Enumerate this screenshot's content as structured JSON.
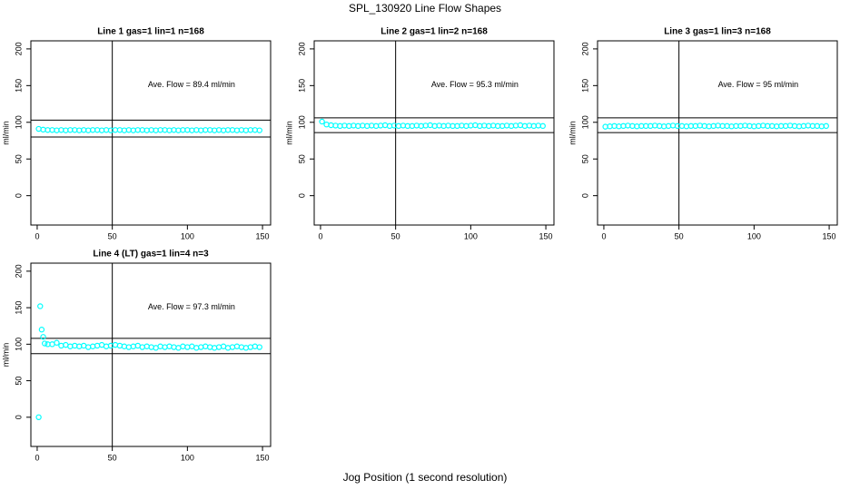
{
  "title": "SPL_130920  Line Flow Shapes",
  "xlabel": "Jog Position (1 second resolution)",
  "chart_data": [
    {
      "type": "scatter",
      "title": "Line 1 gas=1 lin=1 n=168",
      "ylabel": "ml/min",
      "annotation": "Ave. Flow =  89.4  ml/min",
      "color": "#00ffff",
      "xlim": [
        -4.2,
        155.4
      ],
      "ylim": [
        -40,
        211
      ],
      "xticks": [
        0,
        50,
        100,
        150
      ],
      "yticks": [
        0,
        50,
        100,
        150,
        200
      ],
      "hlines": [
        103,
        80
      ],
      "vlines": [
        50
      ],
      "x": [
        1,
        4,
        7,
        10,
        13,
        16,
        19,
        22,
        25,
        28,
        31,
        34,
        37,
        40,
        43,
        46,
        49,
        52,
        55,
        58,
        61,
        64,
        67,
        70,
        73,
        76,
        79,
        82,
        85,
        88,
        91,
        94,
        97,
        100,
        103,
        106,
        109,
        112,
        115,
        118,
        121,
        124,
        127,
        130,
        133,
        136,
        139,
        142,
        145,
        148
      ],
      "values": [
        91,
        90,
        89.5,
        89.5,
        89,
        89.5,
        89,
        89.5,
        89.5,
        89,
        89.5,
        89,
        89.5,
        89.5,
        89,
        89.5,
        89,
        89.5,
        89.5,
        89,
        89.5,
        89,
        89.5,
        89.5,
        89,
        89.5,
        89,
        89.5,
        89.5,
        89,
        89.5,
        89,
        89.5,
        89.5,
        89,
        89.5,
        89,
        89.5,
        89.5,
        89,
        89.5,
        89,
        89.5,
        89.5,
        89,
        89.5,
        89,
        89.5,
        89.5,
        89
      ]
    },
    {
      "type": "scatter",
      "title": "Line 2 gas=1 lin=2 n=168",
      "ylabel": "ml/min",
      "annotation": "Ave. Flow =  95.3  ml/min",
      "color": "#00ffff",
      "xlim": [
        -4.2,
        155.4
      ],
      "ylim": [
        -40,
        211
      ],
      "xticks": [
        0,
        50,
        100,
        150
      ],
      "yticks": [
        0,
        50,
        100,
        150,
        200
      ],
      "hlines": [
        106,
        86
      ],
      "vlines": [
        50
      ],
      "x": [
        1,
        4,
        7,
        10,
        13,
        16,
        19,
        22,
        25,
        28,
        31,
        34,
        37,
        40,
        43,
        46,
        49,
        52,
        55,
        58,
        61,
        64,
        67,
        70,
        73,
        76,
        79,
        82,
        85,
        88,
        91,
        94,
        97,
        100,
        103,
        106,
        109,
        112,
        115,
        118,
        121,
        124,
        127,
        130,
        133,
        136,
        139,
        142,
        145,
        148
      ],
      "values": [
        101,
        97,
        96,
        95.5,
        95,
        95.5,
        95,
        95.5,
        95,
        95.5,
        95,
        95.5,
        95,
        95.5,
        96,
        95,
        95.5,
        95,
        95.5,
        95,
        95,
        95.5,
        95,
        95.5,
        96,
        95,
        95.5,
        95,
        95.5,
        95,
        95,
        95.5,
        95,
        95.5,
        96,
        95,
        95.5,
        95,
        95.5,
        95,
        95,
        95.5,
        95,
        95.5,
        96,
        95,
        95.5,
        95,
        95.5,
        95
      ]
    },
    {
      "type": "scatter",
      "title": "Line 3 gas=1 lin=3 n=168",
      "ylabel": "ml/min",
      "annotation": "Ave. Flow =  95  ml/min",
      "color": "#00ffff",
      "xlim": [
        -4.2,
        155.4
      ],
      "ylim": [
        -40,
        211
      ],
      "xticks": [
        0,
        50,
        100,
        150
      ],
      "yticks": [
        0,
        50,
        100,
        150,
        200
      ],
      "hlines": [
        106,
        86
      ],
      "vlines": [
        50
      ],
      "x": [
        1,
        4,
        7,
        10,
        13,
        16,
        19,
        22,
        25,
        28,
        31,
        34,
        37,
        40,
        43,
        46,
        49,
        52,
        55,
        58,
        61,
        64,
        67,
        70,
        73,
        76,
        79,
        82,
        85,
        88,
        91,
        94,
        97,
        100,
        103,
        106,
        109,
        112,
        115,
        118,
        121,
        124,
        127,
        130,
        133,
        136,
        139,
        142,
        145,
        148
      ],
      "values": [
        94,
        94.5,
        95,
        94.5,
        95,
        95.5,
        95,
        94.5,
        95,
        95,
        95,
        95.5,
        95,
        94.5,
        95,
        95.5,
        95,
        95,
        94.5,
        95,
        95,
        95.5,
        95,
        94.5,
        95,
        95.5,
        95,
        95,
        94.5,
        95,
        95,
        95.5,
        95,
        94.5,
        95,
        95.5,
        95,
        95,
        94.5,
        95,
        95,
        95.5,
        95,
        94.5,
        95,
        95.5,
        95,
        95,
        94.5,
        95
      ]
    },
    {
      "type": "scatter",
      "title": "Line 4 (LT) gas=1 lin=4 n=3",
      "ylabel": "ml/min",
      "annotation": "Ave. Flow =  97.3  ml/min",
      "color": "#00ffff",
      "xlim": [
        -4.2,
        155.4
      ],
      "ylim": [
        -40,
        211
      ],
      "xticks": [
        0,
        50,
        100,
        150
      ],
      "yticks": [
        0,
        50,
        100,
        150,
        200
      ],
      "hlines": [
        108,
        87
      ],
      "vlines": [
        50
      ],
      "x": [
        1,
        2,
        3,
        4,
        5,
        7,
        10,
        13,
        16,
        19,
        22,
        25,
        28,
        31,
        34,
        37,
        40,
        43,
        46,
        49,
        52,
        55,
        58,
        61,
        64,
        67,
        70,
        73,
        76,
        79,
        82,
        85,
        88,
        91,
        94,
        97,
        100,
        103,
        106,
        109,
        112,
        115,
        118,
        121,
        124,
        127,
        130,
        133,
        136,
        139,
        142,
        145,
        148
      ],
      "values": [
        0,
        152,
        120,
        110,
        101,
        100,
        100,
        102,
        98,
        99,
        97,
        98,
        97,
        98,
        96,
        97,
        98,
        99,
        97,
        98,
        99,
        98,
        97,
        96,
        97,
        98,
        96,
        97,
        96,
        95,
        97,
        96,
        97,
        96,
        95,
        97,
        96,
        97,
        95,
        96,
        97,
        96,
        95,
        96,
        97,
        95,
        96,
        97,
        96,
        95,
        96,
        97,
        96
      ]
    }
  ]
}
